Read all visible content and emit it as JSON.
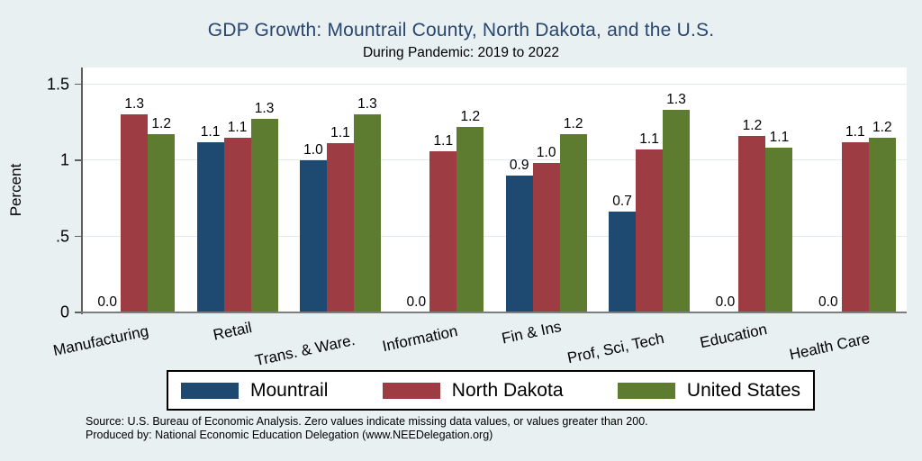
{
  "title": "GDP Growth: Mountrail County, North Dakota, and the U.S.",
  "subtitle": "During Pandemic: 2019 to 2022",
  "ylabel": "Percent",
  "notes": {
    "source": "Source: U.S. Bureau of Economic Analysis. Zero values indicate missing data values, or values greater than 200.",
    "producer": "Produced by: National Economic Education Delegation (www.NEEDelegation.org)"
  },
  "colors": {
    "background": "#e8f0f2",
    "plot_background": "#ffffff",
    "gridline": "#dfeaee",
    "title": "#28466e",
    "mountrail_blue": "#1e4a72",
    "north_dakota_maroon": "#9d3c43",
    "united_states_green": "#5d7c2f"
  },
  "chart_data": {
    "type": "bar",
    "title": "GDP Growth: Mountrail County, North Dakota, and the U.S.",
    "subtitle": "During Pandemic: 2019 to 2022",
    "xlabel": "",
    "ylabel": "Percent",
    "ylim": [
      0,
      1.61
    ],
    "yticks": [
      {
        "value": 0,
        "label": "0"
      },
      {
        "value": 0.5,
        "label": ".5"
      },
      {
        "value": 1,
        "label": "1"
      },
      {
        "value": 1.5,
        "label": "1.5"
      }
    ],
    "grid": true,
    "legend_position": "bottom",
    "categories": [
      "Manufacturing",
      "Retail",
      "Trans. & Ware.",
      "Information",
      "Fin & Ins",
      "Prof, Sci, Tech",
      "Education",
      "Health Care"
    ],
    "series": [
      {
        "name": "Mountrail",
        "color": "#1e4a72",
        "values": [
          0.0,
          1.12,
          1.0,
          0.0,
          0.9,
          0.66,
          0.0,
          0.0
        ],
        "labels": [
          "0.0",
          "1.1",
          "1.0",
          "0.0",
          "0.9",
          "0.7",
          "0.0",
          "0.0"
        ]
      },
      {
        "name": "North Dakota",
        "color": "#9d3c43",
        "values": [
          1.3,
          1.15,
          1.11,
          1.06,
          0.98,
          1.07,
          1.16,
          1.12
        ],
        "labels": [
          "1.3",
          "1.1",
          "1.1",
          "1.1",
          "1.0",
          "1.1",
          "1.2",
          "1.1"
        ]
      },
      {
        "name": "United States",
        "color": "#5d7c2f",
        "values": [
          1.17,
          1.27,
          1.3,
          1.22,
          1.17,
          1.33,
          1.08,
          1.15
        ],
        "labels": [
          "1.2",
          "1.3",
          "1.3",
          "1.2",
          "1.2",
          "1.3",
          "1.1",
          "1.2"
        ]
      }
    ]
  }
}
